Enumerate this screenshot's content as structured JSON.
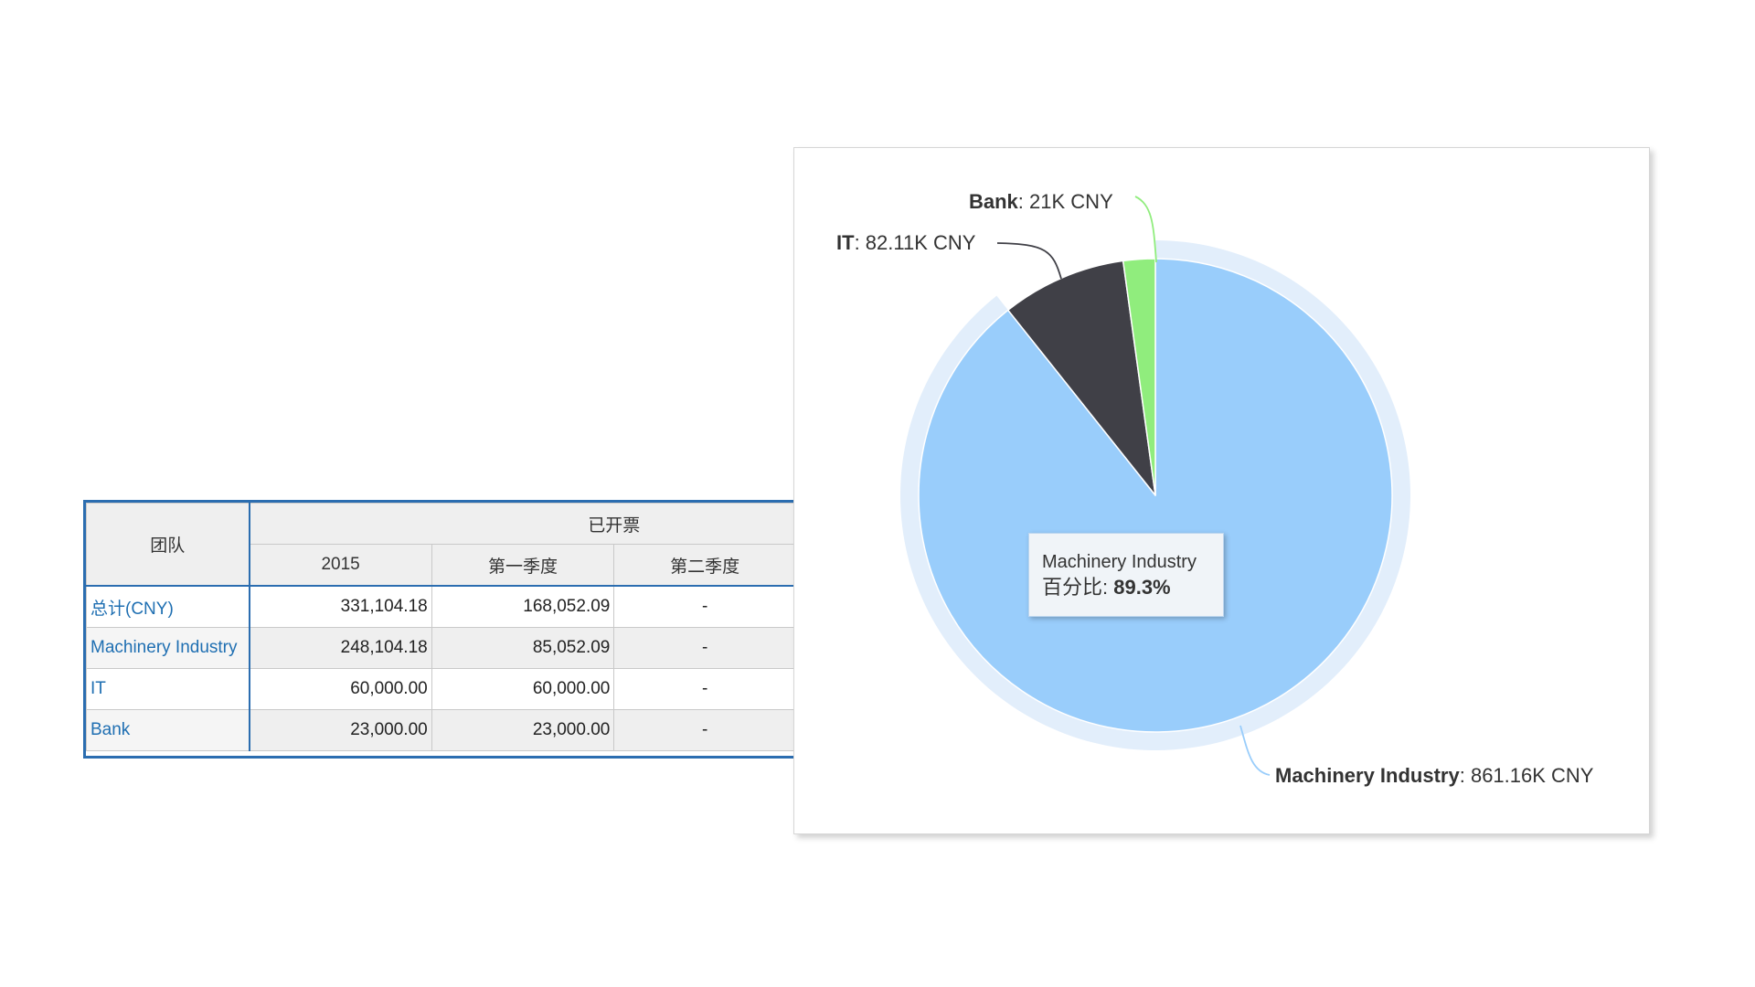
{
  "table": {
    "header_team": "团队",
    "header_group": "已开票",
    "columns": [
      "2015",
      "第一季度",
      "第二季度"
    ],
    "rows": [
      {
        "team": "总计(CNY)",
        "values": [
          "331,104.18",
          "168,052.09",
          "-"
        ]
      },
      {
        "team": "Machinery Industry",
        "values": [
          "248,104.18",
          "85,052.09",
          "-"
        ]
      },
      {
        "team": "IT",
        "values": [
          "60,000.00",
          "60,000.00",
          "-"
        ]
      },
      {
        "team": "Bank",
        "values": [
          "23,000.00",
          "23,000.00",
          "-"
        ]
      }
    ]
  },
  "chart_data": {
    "type": "pie",
    "unit": "CNY",
    "slices": [
      {
        "name": "Machinery Industry",
        "value": 861.16,
        "value_label": "861.16K CNY",
        "color": "#99cdfb"
      },
      {
        "name": "IT",
        "value": 82.11,
        "value_label": "82.11K CNY",
        "color": "#404047"
      },
      {
        "name": "Bank",
        "value": 21,
        "value_label": "21K CNY",
        "color": "#90ed7d"
      }
    ],
    "labels": [
      {
        "name": "Bank",
        "sep": ": ",
        "value": "21K CNY"
      },
      {
        "name": "IT",
        "sep": ": ",
        "value": "82.11K CNY"
      },
      {
        "name": "Machinery Industry",
        "sep": ": ",
        "value": "861.16K CNY"
      }
    ],
    "hover_halo_color": "#e2eefb",
    "tooltip": {
      "title": "Machinery Industry",
      "label": "百分比: ",
      "value": "89.3%"
    }
  }
}
